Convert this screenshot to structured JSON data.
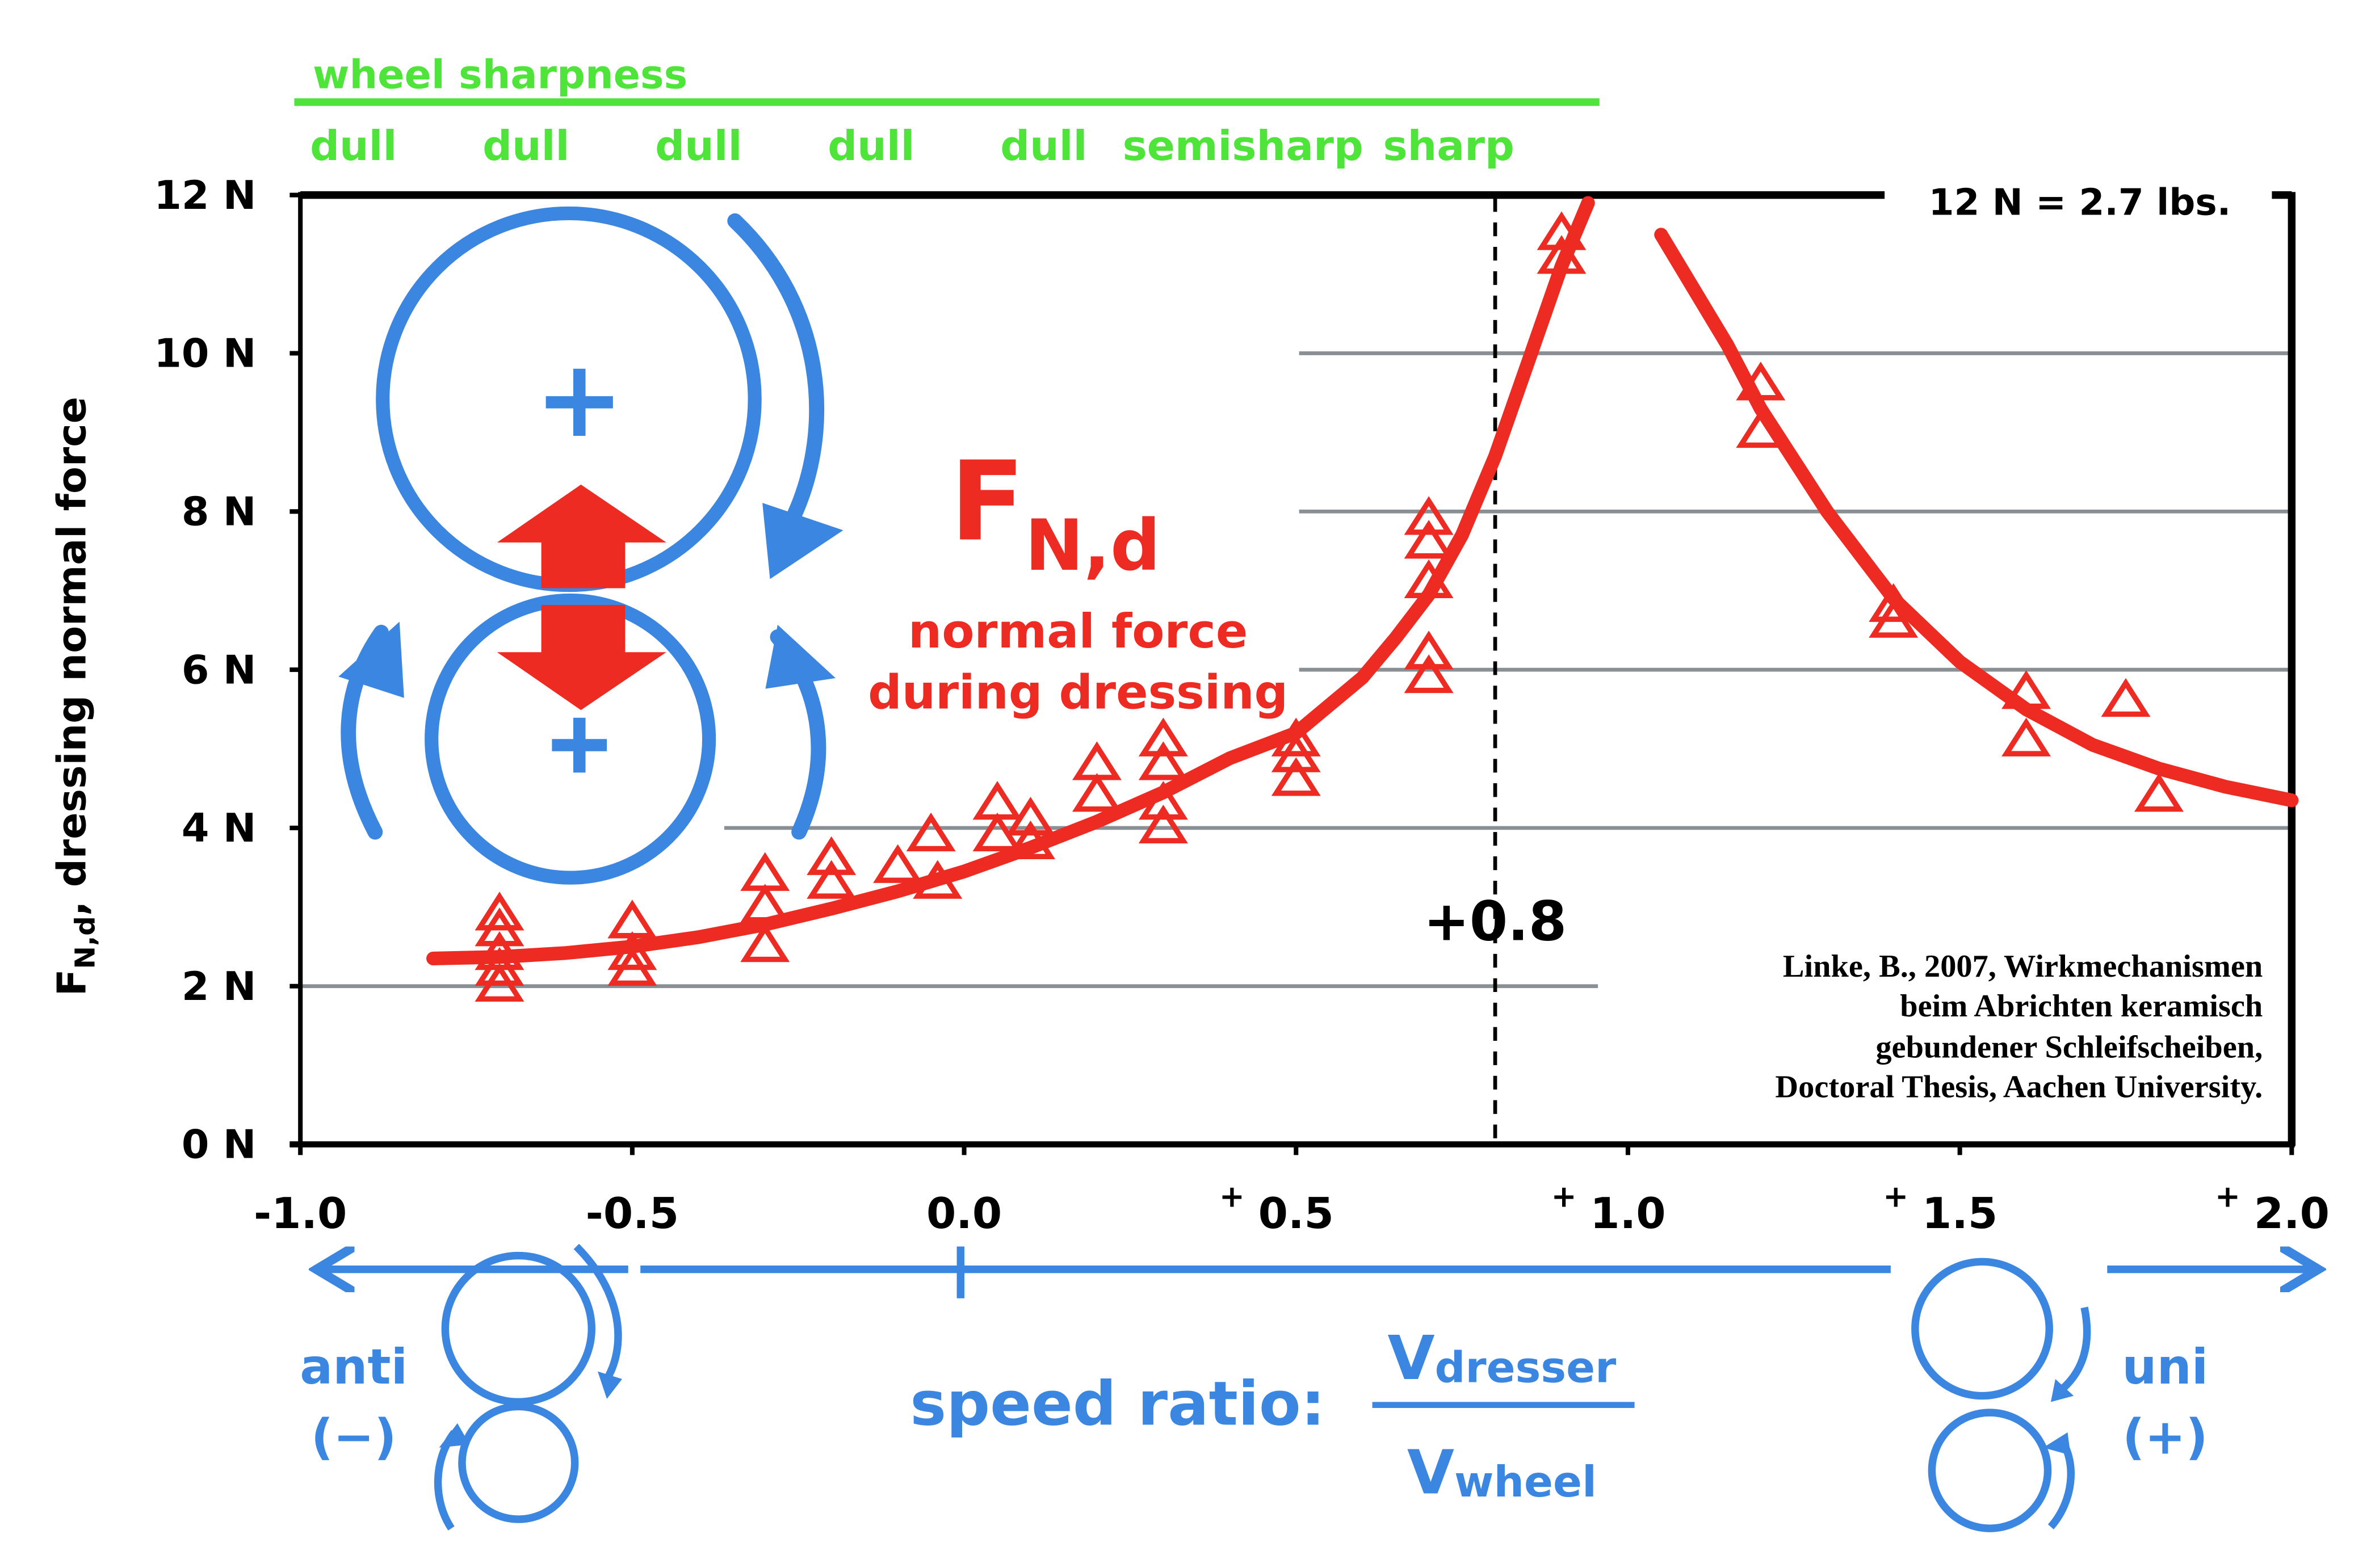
{
  "chart_data": {
    "type": "scatter",
    "title": "",
    "xlabel": "speed ratio:",
    "x_fraction": {
      "numerator": "V",
      "numerator_sub": "dresser",
      "denominator": "V",
      "denominator_sub": "wheel"
    },
    "ylabel": {
      "symbol": "F",
      "sub": "N,d",
      "suffix": ", dressing normal force"
    },
    "xlim": [
      -1.0,
      2.0
    ],
    "ylim": [
      0,
      12
    ],
    "x_ticks": [
      {
        "value": -1.0,
        "label": "-1.0",
        "plus": ""
      },
      {
        "value": -0.5,
        "label": "-0.5",
        "plus": ""
      },
      {
        "value": 0.0,
        "label": "0.0",
        "plus": ""
      },
      {
        "value": 0.5,
        "label": "0.5",
        "plus": "+"
      },
      {
        "value": 1.0,
        "label": "1.0",
        "plus": "+"
      },
      {
        "value": 1.5,
        "label": "1.5",
        "plus": "+"
      },
      {
        "value": 2.0,
        "label": "2.0",
        "plus": "+"
      }
    ],
    "y_ticks": [
      {
        "value": 0,
        "label": "0 N"
      },
      {
        "value": 2,
        "label": "2 N"
      },
      {
        "value": 4,
        "label": "4 N"
      },
      {
        "value": 6,
        "label": "6 N"
      },
      {
        "value": 8,
        "label": "8 N"
      },
      {
        "value": 10,
        "label": "10 N"
      },
      {
        "value": 12,
        "label": "12 N"
      }
    ],
    "grid_y": true,
    "series": [
      {
        "marker": "triangle-open",
        "color": "#ee2b22",
        "points": [
          {
            "x": -0.7,
            "y": 2.9
          },
          {
            "x": -0.7,
            "y": 2.7
          },
          {
            "x": -0.7,
            "y": 2.4
          },
          {
            "x": -0.7,
            "y": 2.2
          },
          {
            "x": -0.7,
            "y": 2.0
          },
          {
            "x": -0.5,
            "y": 2.8
          },
          {
            "x": -0.5,
            "y": 2.4
          },
          {
            "x": -0.5,
            "y": 2.2
          },
          {
            "x": -0.3,
            "y": 3.4
          },
          {
            "x": -0.3,
            "y": 3.0
          },
          {
            "x": -0.3,
            "y": 2.5
          },
          {
            "x": -0.2,
            "y": 3.6
          },
          {
            "x": -0.2,
            "y": 3.3
          },
          {
            "x": -0.1,
            "y": 3.5
          },
          {
            "x": -0.05,
            "y": 3.9
          },
          {
            "x": -0.04,
            "y": 3.3
          },
          {
            "x": 0.05,
            "y": 4.3
          },
          {
            "x": 0.05,
            "y": 3.9
          },
          {
            "x": 0.1,
            "y": 4.1
          },
          {
            "x": 0.1,
            "y": 3.8
          },
          {
            "x": 0.2,
            "y": 4.8
          },
          {
            "x": 0.2,
            "y": 4.4
          },
          {
            "x": 0.3,
            "y": 5.1
          },
          {
            "x": 0.3,
            "y": 4.8
          },
          {
            "x": 0.3,
            "y": 4.3
          },
          {
            "x": 0.3,
            "y": 4.0
          },
          {
            "x": 0.5,
            "y": 5.1
          },
          {
            "x": 0.5,
            "y": 4.9
          },
          {
            "x": 0.5,
            "y": 4.6
          },
          {
            "x": 0.7,
            "y": 7.9
          },
          {
            "x": 0.7,
            "y": 7.6
          },
          {
            "x": 0.7,
            "y": 7.1
          },
          {
            "x": 0.7,
            "y": 6.2
          },
          {
            "x": 0.7,
            "y": 5.9
          },
          {
            "x": 0.9,
            "y": 11.5
          },
          {
            "x": 0.9,
            "y": 11.2
          },
          {
            "x": 1.2,
            "y": 9.6
          },
          {
            "x": 1.2,
            "y": 9.0
          },
          {
            "x": 1.4,
            "y": 6.8
          },
          {
            "x": 1.4,
            "y": 6.6
          },
          {
            "x": 1.6,
            "y": 5.7
          },
          {
            "x": 1.6,
            "y": 5.1
          },
          {
            "x": 1.75,
            "y": 5.6
          },
          {
            "x": 1.8,
            "y": 4.4
          }
        ]
      },
      {
        "type": "line",
        "color": "#ee2b22",
        "segments": [
          [
            [
              -0.8,
              2.35
            ],
            [
              -0.7,
              2.37
            ],
            [
              -0.6,
              2.42
            ],
            [
              -0.5,
              2.5
            ],
            [
              -0.4,
              2.62
            ],
            [
              -0.3,
              2.78
            ],
            [
              -0.2,
              2.98
            ],
            [
              -0.1,
              3.2
            ],
            [
              0.0,
              3.45
            ],
            [
              0.1,
              3.75
            ],
            [
              0.2,
              4.08
            ],
            [
              0.3,
              4.45
            ],
            [
              0.4,
              4.88
            ],
            [
              0.5,
              5.2
            ],
            [
              0.6,
              5.9
            ],
            [
              0.65,
              6.4
            ],
            [
              0.7,
              6.95
            ],
            [
              0.75,
              7.7
            ],
            [
              0.8,
              8.7
            ],
            [
              0.85,
              9.9
            ],
            [
              0.9,
              11.1
            ],
            [
              0.94,
              11.9
            ]
          ],
          [
            [
              1.05,
              11.5
            ],
            [
              1.1,
              10.8
            ],
            [
              1.15,
              10.1
            ],
            [
              1.2,
              9.3
            ],
            [
              1.3,
              8.0
            ],
            [
              1.4,
              6.9
            ],
            [
              1.5,
              6.1
            ],
            [
              1.6,
              5.5
            ],
            [
              1.7,
              5.05
            ],
            [
              1.8,
              4.75
            ],
            [
              1.9,
              4.52
            ],
            [
              2.0,
              4.35
            ]
          ]
        ]
      }
    ],
    "reference_line": {
      "x": 0.8,
      "label": "+0.8"
    },
    "annotations": {
      "unit_note": "12 N = 2.7 lbs.",
      "force_symbol": "F",
      "force_sub": "N,d",
      "force_desc_1": "normal force",
      "force_desc_2": "during dressing",
      "citation": [
        "Linke, B., 2007, Wirkmechanismen",
        "beim Abrichten keramisch",
        "gebundener Schleifscheiben,",
        "Doctoral Thesis, Aachen University."
      ],
      "sharpness_title": "wheel sharpness",
      "sharpness_labels": [
        {
          "x": -0.92,
          "label": "dull"
        },
        {
          "x": -0.66,
          "label": "dull"
        },
        {
          "x": -0.4,
          "label": "dull"
        },
        {
          "x": -0.14,
          "label": "dull"
        },
        {
          "x": 0.12,
          "label": "dull"
        },
        {
          "x": 0.42,
          "label": "semisharp"
        },
        {
          "x": 0.73,
          "label": "sharp"
        }
      ],
      "anti_label_1": "anti",
      "anti_label_2": "(−)",
      "uni_label_1": "uni",
      "uni_label_2": "(+)"
    },
    "colors": {
      "data": "#ee2b22",
      "blue": "#3a86e0",
      "green": "#4fe43a",
      "grid": "#8a8f93",
      "axis": "#000000"
    }
  }
}
